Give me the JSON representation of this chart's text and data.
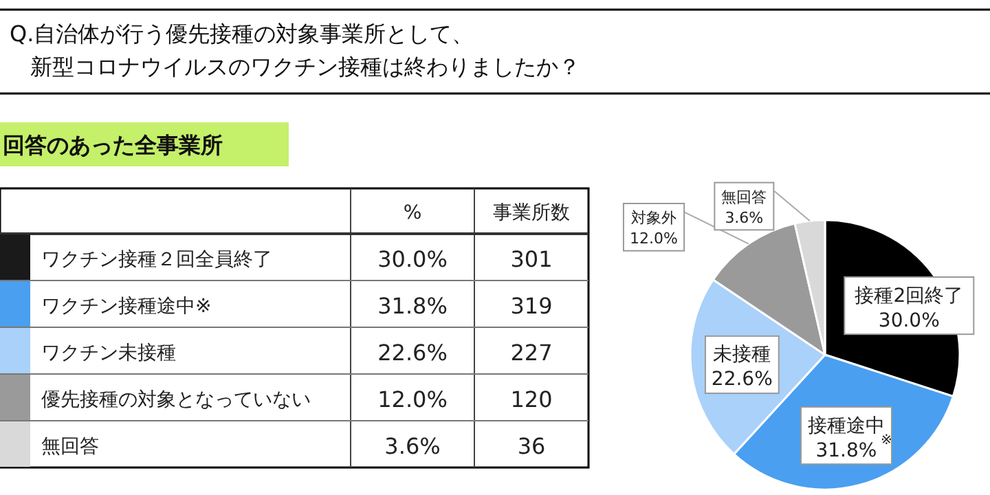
{
  "chart_data": [
    {
      "type": "other",
      "title": "Q.自治体が行う優先接種の対象事業所として、新型コロナウイルスのワクチン接種は終わりましたか？",
      "subtitle": "回答のあった全事業所",
      "categories": [
        "ワクチン接種２回全員終了",
        "ワクチン接種途中※",
        "ワクチン未接種",
        "優先接種の対象となっていない",
        "無回答"
      ],
      "colors": [
        "#1a1a1a",
        "#4a9ff0",
        "#a9d1fa",
        "#9a9a9a",
        "#d9d9d9"
      ],
      "series": [
        {
          "name": "%",
          "values": [
            30.0,
            31.8,
            22.6,
            12.0,
            3.6
          ],
          "value_labels": [
            "30.0%",
            "31.8%",
            "22.6%",
            "12.0%",
            "3.6%"
          ]
        },
        {
          "name": "事業所数",
          "values": [
            301,
            319,
            227,
            120,
            36
          ],
          "value_labels": [
            "301",
            "319",
            "227",
            "120",
            "36"
          ]
        }
      ]
    },
    {
      "type": "pie",
      "categories": [
        "接種2回終了",
        "接種途中",
        "未接種",
        "対象外",
        "無回答"
      ],
      "values": [
        30.0,
        31.8,
        22.6,
        12.0,
        3.6
      ],
      "value_labels": [
        "30.0%",
        "31.8%",
        "22.6%",
        "12.0%",
        "3.6%"
      ],
      "colors": [
        "#000000",
        "#4a9ff0",
        "#a9d1fa",
        "#9a9a9a",
        "#d9d9d9"
      ],
      "annotations": [
        "※"
      ]
    }
  ]
}
